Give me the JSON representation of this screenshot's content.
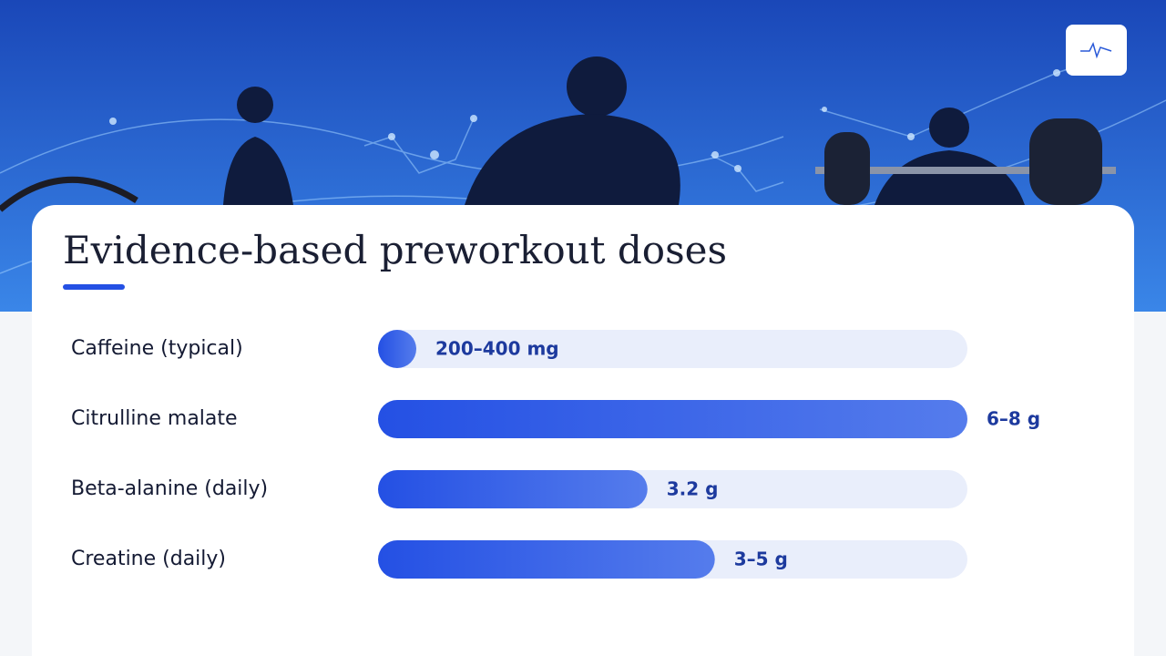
{
  "chart_data": {
    "type": "bar",
    "orientation": "horizontal",
    "title": "Evidence-based preworkout doses",
    "categories": [
      "Caffeine (typical)",
      "Citrulline malate",
      "Beta-alanine (daily)",
      "Creatine (daily)"
    ],
    "values": [
      0.3,
      7,
      3.2,
      4
    ],
    "value_labels": [
      "200–400 mg",
      "6–8 g",
      "3.2 g",
      "3–5 g"
    ],
    "color": "#2450e4"
  }
}
